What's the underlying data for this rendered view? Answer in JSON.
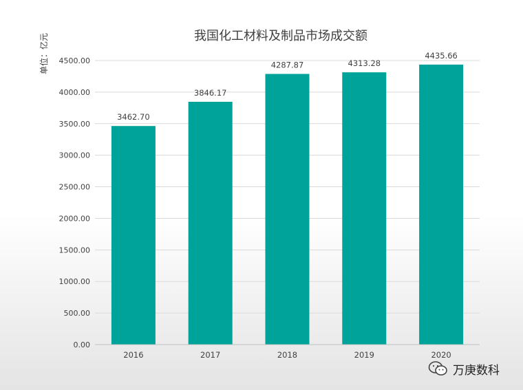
{
  "chart_data": {
    "type": "bar",
    "title": "我国化工材料及制品市场成交额",
    "ylabel": "单位：亿元",
    "xlabel": "",
    "categories": [
      "2016",
      "2017",
      "2018",
      "2019",
      "2020"
    ],
    "values": [
      3462.7,
      3846.17,
      4287.87,
      4313.28,
      4435.66
    ],
    "data_labels": [
      "3462.70",
      "3846.17",
      "4287.87",
      "4313.28",
      "4435.66"
    ],
    "ylim": [
      0,
      4500
    ],
    "yticks": [
      "0.00",
      "500.00",
      "1000.00",
      "1500.00",
      "2000.00",
      "2500.00",
      "3000.00",
      "3500.00",
      "4000.00",
      "4500.00"
    ],
    "bar_color": "#00a39a",
    "grid": true,
    "legend": "none"
  },
  "watermark": {
    "text": "万庚数科",
    "icon": "wechat-icon"
  }
}
